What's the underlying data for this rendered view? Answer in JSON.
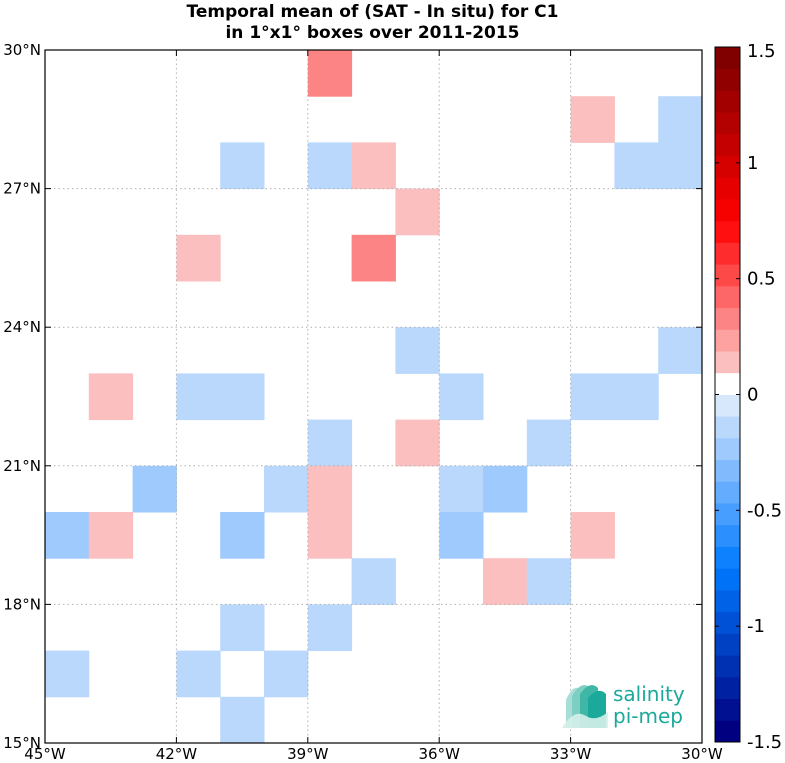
{
  "chart_data": {
    "type": "heatmap",
    "title": "Temporal mean of (SAT - In situ) for C1",
    "subtitle": "in 1°x1° boxes over 2011-2015",
    "xlabel": "",
    "ylabel": "",
    "x_range": [
      -45,
      -30
    ],
    "y_range": [
      15,
      30
    ],
    "x_ticks": [
      -45,
      -42,
      -39,
      -36,
      -33,
      -30
    ],
    "x_tick_labels": [
      "45°W",
      "42°W",
      "39°W",
      "36°W",
      "33°W",
      "30°W"
    ],
    "y_ticks": [
      15,
      18,
      21,
      24,
      27,
      30
    ],
    "y_tick_labels": [
      "15°N",
      "18°N",
      "21°N",
      "24°N",
      "27°N",
      "30°N"
    ],
    "grid": true,
    "colorbar": {
      "range": [
        -1.5,
        1.5
      ],
      "levels": 32,
      "ticks": [
        1.5,
        1,
        0.5,
        0,
        -0.5,
        -1,
        -1.5
      ],
      "tick_labels": [
        "1.5",
        "1",
        "0.5",
        "0",
        "-0.5",
        "-1",
        "-1.5"
      ]
    },
    "cells": [
      {
        "lon": -39,
        "lat": 29,
        "value": 0.3
      },
      {
        "lon": -33,
        "lat": 28,
        "value": 0.15
      },
      {
        "lon": -31,
        "lat": 28,
        "value": -0.15
      },
      {
        "lon": -41,
        "lat": 27,
        "value": -0.15
      },
      {
        "lon": -39,
        "lat": 27,
        "value": -0.15
      },
      {
        "lon": -38,
        "lat": 27,
        "value": 0.15
      },
      {
        "lon": -32,
        "lat": 27,
        "value": -0.15
      },
      {
        "lon": -31,
        "lat": 27,
        "value": -0.15
      },
      {
        "lon": -37,
        "lat": 26,
        "value": 0.15
      },
      {
        "lon": -42,
        "lat": 25,
        "value": 0.15
      },
      {
        "lon": -38,
        "lat": 25,
        "value": 0.3
      },
      {
        "lon": -37,
        "lat": 23,
        "value": -0.15
      },
      {
        "lon": -31,
        "lat": 23,
        "value": -0.15
      },
      {
        "lon": -44,
        "lat": 22,
        "value": 0.15
      },
      {
        "lon": -42,
        "lat": 22,
        "value": -0.15
      },
      {
        "lon": -41,
        "lat": 22,
        "value": -0.15
      },
      {
        "lon": -36,
        "lat": 22,
        "value": -0.15
      },
      {
        "lon": -33,
        "lat": 22,
        "value": -0.15
      },
      {
        "lon": -32,
        "lat": 22,
        "value": -0.15
      },
      {
        "lon": -39,
        "lat": 21,
        "value": -0.15
      },
      {
        "lon": -37,
        "lat": 21,
        "value": 0.15
      },
      {
        "lon": -34,
        "lat": 21,
        "value": -0.15
      },
      {
        "lon": -43,
        "lat": 20,
        "value": -0.25
      },
      {
        "lon": -40,
        "lat": 20,
        "value": -0.15
      },
      {
        "lon": -39,
        "lat": 20,
        "value": 0.15
      },
      {
        "lon": -36,
        "lat": 20,
        "value": -0.15
      },
      {
        "lon": -35,
        "lat": 20,
        "value": -0.25
      },
      {
        "lon": -45,
        "lat": 19,
        "value": -0.25
      },
      {
        "lon": -44,
        "lat": 19,
        "value": 0.15
      },
      {
        "lon": -41,
        "lat": 19,
        "value": -0.25
      },
      {
        "lon": -39,
        "lat": 19,
        "value": 0.15
      },
      {
        "lon": -36,
        "lat": 19,
        "value": -0.25
      },
      {
        "lon": -33,
        "lat": 19,
        "value": 0.15
      },
      {
        "lon": -38,
        "lat": 18,
        "value": -0.15
      },
      {
        "lon": -35,
        "lat": 18,
        "value": 0.15
      },
      {
        "lon": -34,
        "lat": 18,
        "value": -0.15
      },
      {
        "lon": -41,
        "lat": 17,
        "value": -0.15
      },
      {
        "lon": -39,
        "lat": 17,
        "value": -0.15
      },
      {
        "lon": -45,
        "lat": 16,
        "value": -0.15
      },
      {
        "lon": -42,
        "lat": 16,
        "value": -0.15
      },
      {
        "lon": -40,
        "lat": 16,
        "value": -0.15
      },
      {
        "lon": -41,
        "lat": 15,
        "value": -0.15
      }
    ]
  },
  "logo": {
    "line1": "salinity",
    "line2": "pi-mep",
    "color": "#1aa99a"
  }
}
